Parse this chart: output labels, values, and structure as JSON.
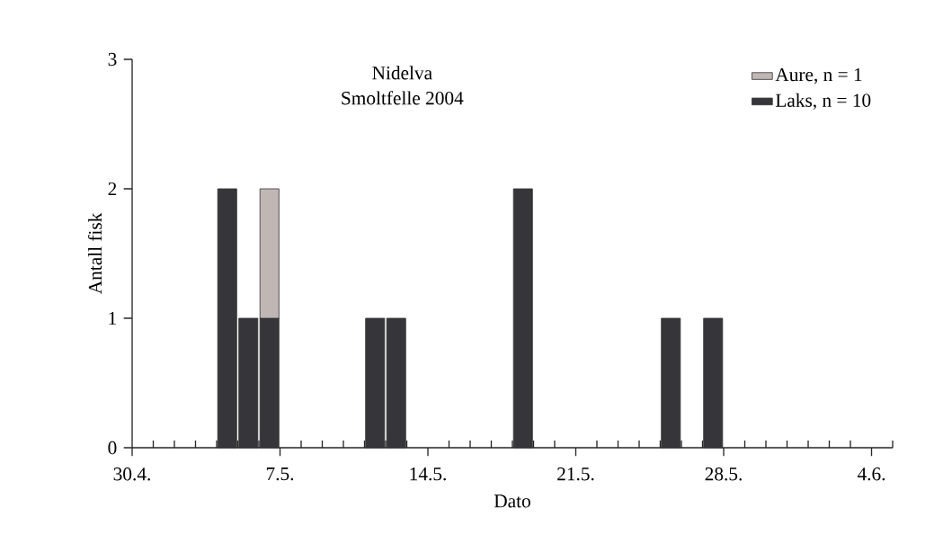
{
  "chart_data": {
    "type": "bar",
    "stacked": true,
    "title": "Nidelva",
    "subtitle": "Smoltfelle 2004",
    "xlabel": "Dato",
    "ylabel": "Antall fisk",
    "x": [
      "2004-05-04T12:00",
      "2004-05-05T12:00",
      "2004-05-06T12:00",
      "2004-05-11T12:00",
      "2004-05-12T12:00",
      "2004-05-18T12:00",
      "2004-05-25T12:00",
      "2004-05-27T12:00"
    ],
    "series": [
      {
        "name": "Laks, n = 10",
        "color": "#36353a",
        "values": [
          2,
          1,
          1,
          1,
          1,
          2,
          1,
          1
        ]
      },
      {
        "name": "Aure, n = 1",
        "color": "#c0b6b3",
        "values": [
          null,
          null,
          1,
          null,
          null,
          null,
          null,
          null
        ]
      }
    ],
    "xlim": [
      "2004-04-30",
      "2004-06-05"
    ],
    "xticks": [
      {
        "value": "2004-04-30",
        "label": "30.4."
      },
      {
        "value": "2004-05-07",
        "label": "7.5."
      },
      {
        "value": "2004-05-14",
        "label": "14.5."
      },
      {
        "value": "2004-05-21",
        "label": "21.5."
      },
      {
        "value": "2004-05-28",
        "label": "28.5."
      },
      {
        "value": "2004-06-04",
        "label": "4.6."
      },
      {
        "value": "2004-05-01",
        "label": null
      },
      {
        "value": "2004-05-02",
        "label": null
      },
      {
        "value": "2004-05-03",
        "label": null
      },
      {
        "value": "2004-05-04",
        "label": null
      },
      {
        "value": "2004-05-05",
        "label": null
      },
      {
        "value": "2004-05-06",
        "label": null
      },
      {
        "value": "2004-05-08",
        "label": null
      },
      {
        "value": "2004-05-09",
        "label": null
      },
      {
        "value": "2004-05-10",
        "label": null
      },
      {
        "value": "2004-05-11",
        "label": null
      },
      {
        "value": "2004-05-12",
        "label": null
      },
      {
        "value": "2004-05-13",
        "label": null
      },
      {
        "value": "2004-05-15",
        "label": null
      },
      {
        "value": "2004-05-16",
        "label": null
      },
      {
        "value": "2004-05-17",
        "label": null
      },
      {
        "value": "2004-05-18",
        "label": null
      },
      {
        "value": "2004-05-19",
        "label": null
      },
      {
        "value": "2004-05-20",
        "label": null
      },
      {
        "value": "2004-05-22",
        "label": null
      },
      {
        "value": "2004-05-23",
        "label": null
      },
      {
        "value": "2004-05-24",
        "label": null
      },
      {
        "value": "2004-05-25",
        "label": null
      },
      {
        "value": "2004-05-26",
        "label": null
      },
      {
        "value": "2004-05-27",
        "label": null
      },
      {
        "value": "2004-05-29",
        "label": null
      },
      {
        "value": "2004-05-30",
        "label": null
      },
      {
        "value": "2004-05-31",
        "label": null
      },
      {
        "value": "2004-06-01",
        "label": null
      },
      {
        "value": "2004-06-02",
        "label": null
      },
      {
        "value": "2004-06-03",
        "label": null
      },
      {
        "value": "2004-06-05",
        "label": null
      }
    ],
    "ylim": [
      0,
      3
    ],
    "yticks": [
      0,
      1,
      2,
      3
    ],
    "legend": "top right",
    "grid": false
  }
}
